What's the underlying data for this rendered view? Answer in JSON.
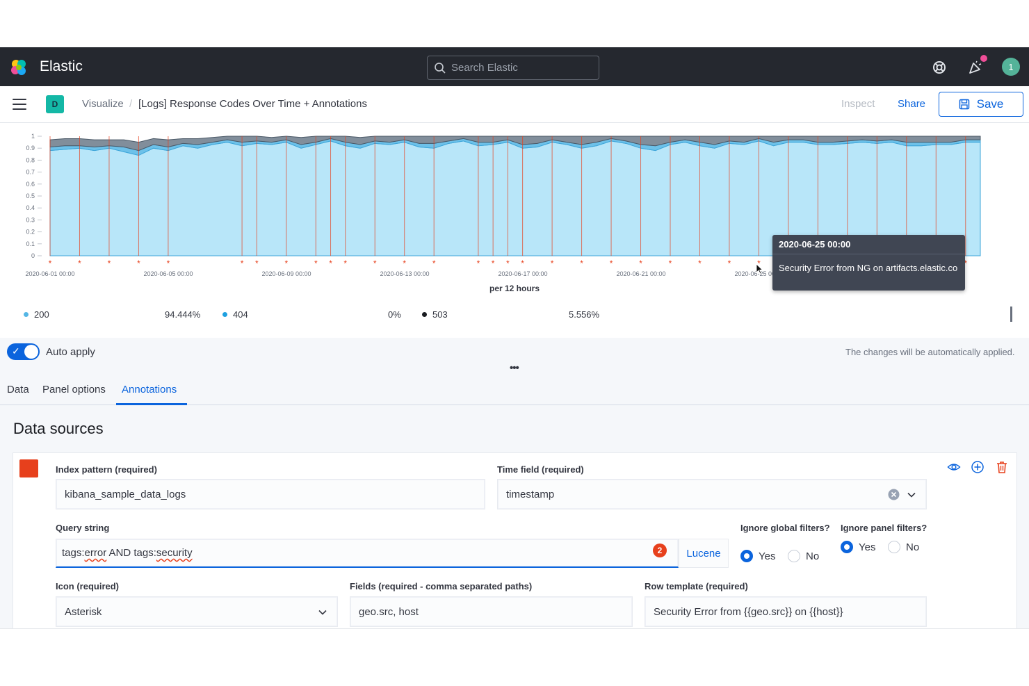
{
  "topbar": {
    "brand": "Elastic",
    "search_placeholder": "Search Elastic",
    "avatar_initial": "1"
  },
  "header": {
    "space_initial": "D",
    "breadcrumb_root": "Visualize",
    "breadcrumb_separator": "/",
    "breadcrumb_current": "[Logs] Response Codes Over Time + Annotations",
    "inspect_label": "Inspect",
    "share_label": "Share",
    "save_label": "Save"
  },
  "chart_data": {
    "type": "area",
    "x_axis_title": "per 12 hours",
    "x_tick_labels": [
      "2020-06-01 00:00",
      "2020-06-05 00:00",
      "2020-06-09 00:00",
      "2020-06-13 00:00",
      "2020-06-17 00:00",
      "2020-06-21 00:00",
      "2020-06-25 00:00"
    ],
    "y_tick_labels": [
      "0",
      "0.1",
      "0.2",
      "0.3",
      "0.4",
      "0.5",
      "0.6",
      "0.7",
      "0.8",
      "0.9",
      "1"
    ],
    "ylim": [
      0,
      1
    ],
    "stacked": true,
    "series": [
      {
        "name": "200",
        "color": "#a6e0f7",
        "values": [
          0.88,
          0.89,
          0.9,
          0.88,
          0.9,
          0.87,
          0.84,
          0.9,
          0.88,
          0.92,
          0.9,
          0.93,
          0.95,
          0.92,
          0.94,
          0.93,
          0.95,
          0.9,
          0.93,
          0.96,
          0.92,
          0.9,
          0.94,
          0.93,
          0.95,
          0.91,
          0.9,
          0.94,
          0.96,
          0.92,
          0.93,
          0.95,
          0.9,
          0.91,
          0.95,
          0.93,
          0.9,
          0.92,
          0.96,
          0.94,
          0.9,
          0.88,
          0.93,
          0.95,
          0.92,
          0.9,
          0.94,
          0.93,
          0.96,
          0.92,
          0.95,
          0.95,
          0.93,
          0.93,
          0.94,
          0.95,
          0.94,
          0.95,
          0.92,
          0.92,
          0.93,
          0.93,
          0.95,
          0.95
        ]
      },
      {
        "name": "404",
        "color": "#54b6e5",
        "values": [
          0.03,
          0.03,
          0.02,
          0.03,
          0.02,
          0.04,
          0.04,
          0.03,
          0.03,
          0.02,
          0.03,
          0.02,
          0.02,
          0.03,
          0.02,
          0.02,
          0.02,
          0.03,
          0.02,
          0.02,
          0.03,
          0.03,
          0.02,
          0.02,
          0.02,
          0.03,
          0.04,
          0.02,
          0.02,
          0.03,
          0.02,
          0.02,
          0.03,
          0.03,
          0.02,
          0.02,
          0.03,
          0.03,
          0.02,
          0.02,
          0.03,
          0.04,
          0.02,
          0.02,
          0.03,
          0.03,
          0.02,
          0.02,
          0.02,
          0.03,
          0.02,
          0.02,
          0.02,
          0.02,
          0.02,
          0.02,
          0.02,
          0.02,
          0.03,
          0.03,
          0.02,
          0.02,
          0.02,
          0.02
        ]
      },
      {
        "name": "503",
        "color": "#6b7a8a",
        "values": [
          0.06,
          0.06,
          0.06,
          0.06,
          0.05,
          0.06,
          0.07,
          0.05,
          0.06,
          0.04,
          0.05,
          0.04,
          0.03,
          0.05,
          0.04,
          0.04,
          0.03,
          0.06,
          0.05,
          0.02,
          0.05,
          0.06,
          0.04,
          0.05,
          0.03,
          0.06,
          0.06,
          0.04,
          0.02,
          0.05,
          0.05,
          0.03,
          0.07,
          0.06,
          0.03,
          0.05,
          0.07,
          0.05,
          0.02,
          0.04,
          0.07,
          0.08,
          0.05,
          0.03,
          0.05,
          0.07,
          0.04,
          0.05,
          0.02,
          0.05,
          0.03,
          0.03,
          0.05,
          0.05,
          0.04,
          0.03,
          0.04,
          0.03,
          0.05,
          0.05,
          0.05,
          0.05,
          0.03,
          0.03
        ]
      }
    ],
    "annotation_indices": [
      0,
      2,
      4,
      6,
      8,
      13,
      14,
      16,
      18,
      19,
      20,
      22,
      24,
      26,
      29,
      30,
      31,
      32,
      34,
      36,
      38,
      40,
      42,
      44,
      46,
      48,
      50,
      52,
      54,
      56,
      58,
      60,
      62
    ],
    "annotation_color": "#e7401c"
  },
  "tooltip": {
    "title": "2020-06-25 00:00",
    "body": "Security Error from NG on artifacts.elastic.co"
  },
  "legend": {
    "items": [
      {
        "label": "200",
        "value": "94.444%",
        "color": "#54b6e5"
      },
      {
        "label": "404",
        "value": "0%",
        "color": "#1ea0e0"
      },
      {
        "label": "503",
        "value": "5.556%",
        "color": "#1a1c21"
      }
    ]
  },
  "toolbar": {
    "auto_apply_label": "Auto apply",
    "auto_apply_on": true,
    "auto_apply_note": "The changes will be automatically applied.",
    "tabs": [
      "Data",
      "Panel options",
      "Annotations"
    ],
    "active_tab": "Annotations"
  },
  "annotations": {
    "section_title": "Data sources",
    "swatch_color": "#e7401c",
    "index_pattern_label": "Index pattern (required)",
    "index_pattern_value": "kibana_sample_data_logs",
    "time_field_label": "Time field (required)",
    "time_field_value": "timestamp",
    "query_label": "Query string",
    "query_parts": [
      "tags:",
      "error",
      " AND tags:",
      "security"
    ],
    "query_error_count": "2",
    "query_language": "Lucene",
    "ignore_global_label": "Ignore global filters?",
    "ignore_panel_label": "Ignore panel filters?",
    "yes_label": "Yes",
    "no_label": "No",
    "ignore_global_value": "Yes",
    "ignore_panel_value": "Yes",
    "icon_label": "Icon (required)",
    "icon_value": "Asterisk",
    "fields_label": "Fields (required - comma separated paths)",
    "fields_value": "geo.src, host",
    "row_template_label": "Row template (required)",
    "row_template_value": "Security Error from {{geo.src}} on {{host}}"
  }
}
